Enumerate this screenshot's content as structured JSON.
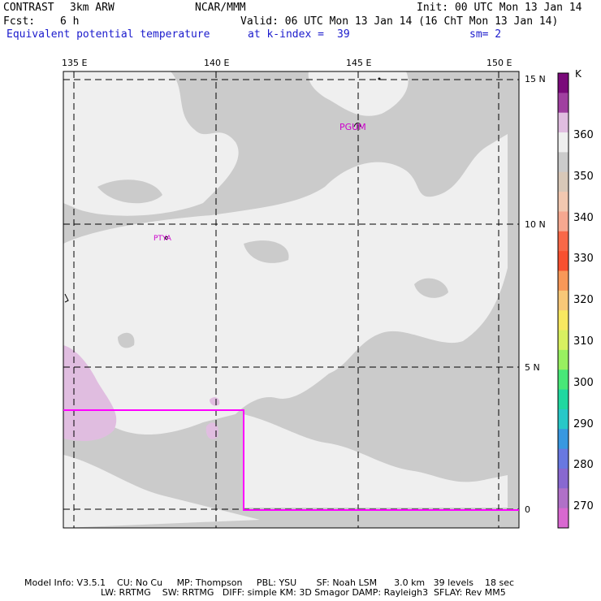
{
  "header": {
    "model": "CONTRAST",
    "resolution": "3km ARW",
    "org": "NCAR/MMM",
    "init": "Init: 00 UTC Mon 13 Jan 14",
    "fcst_label": "Fcst:",
    "fcst_value": "6 h",
    "valid": "Valid: 06 UTC Mon 13 Jan 14 (16 ChT Mon 13 Jan 14)",
    "field": "Equivalent potential temperature",
    "level": "at k-index =",
    "level_value": "39",
    "smooth": "sm= 2"
  },
  "map": {
    "lon_labels": [
      "135 E",
      "140 E",
      "145 E",
      "150 E"
    ],
    "lat_labels": [
      "15 N",
      "10 N",
      "5 N",
      "0"
    ],
    "stations": [
      "PGUM",
      "PTYA"
    ],
    "colors": {
      "grey": "#cbcbcb",
      "light": "#efefef",
      "lilac": "#e0bde0",
      "box": "#ff00ff"
    }
  },
  "colorbar": {
    "unit": "K",
    "ticks": [
      "360",
      "350",
      "340",
      "330",
      "320",
      "310",
      "300",
      "290",
      "280",
      "270"
    ],
    "colors_top_to_bottom": [
      "#7a0a7a",
      "#a040a0",
      "#e0bde0",
      "#efefef",
      "#cbcbcb",
      "#d8c8b8",
      "#f2c8b0",
      "#f6a890",
      "#f86848",
      "#f85030",
      "#f89858",
      "#f8c878",
      "#f8e860",
      "#d8f060",
      "#98f060",
      "#48e878",
      "#20d8a0",
      "#28c8c8",
      "#3898e0",
      "#6878e0",
      "#8868d0",
      "#b070c8",
      "#d868d0"
    ]
  },
  "footer": {
    "line1": "Model Info: V3.5.1    CU: No Cu     MP: Thompson     PBL: YSU       SF: Noah LSM      3.0 km   39 levels    18 sec",
    "line2": "LW: RRTMG    SW: RRTMG   DIFF: simple KM: 3D Smagor DAMP: Rayleigh3  SFLAY: Rev MM5"
  }
}
